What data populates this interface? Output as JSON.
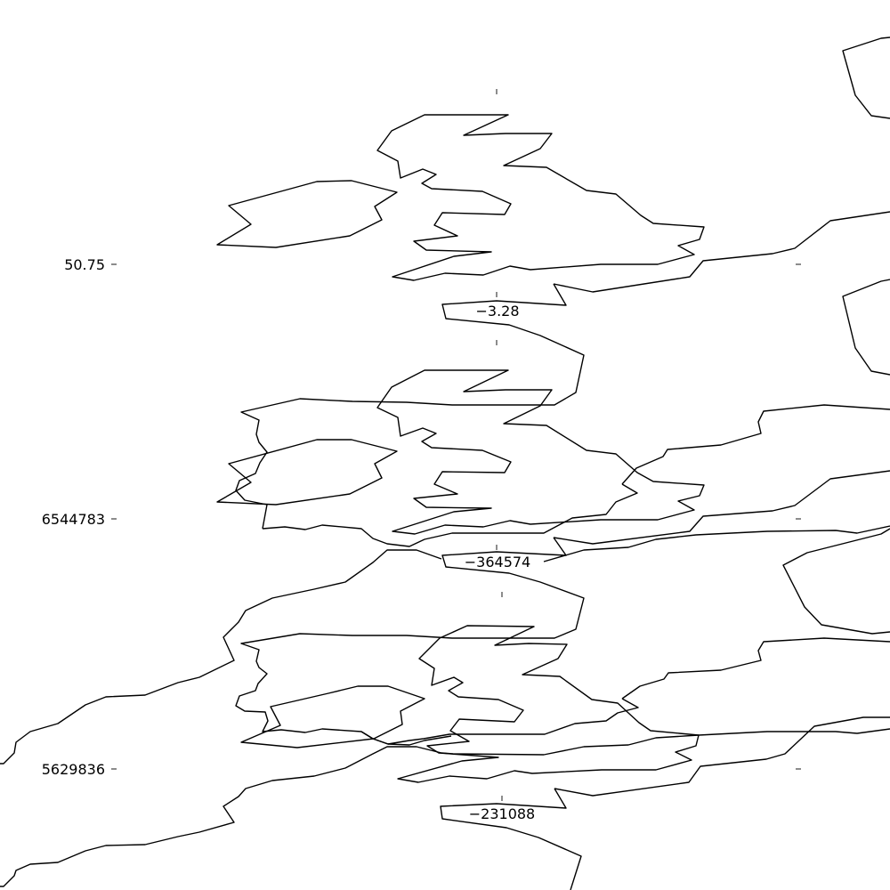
{
  "panels": [
    {
      "name": "top",
      "y_label": "50.75",
      "x_label": "−3.28"
    },
    {
      "name": "middle",
      "y_label": "6544783",
      "x_label": "−364574"
    },
    {
      "name": "bottom",
      "y_label": "5629836",
      "x_label": "−231088"
    }
  ],
  "colors": {
    "background": "#ffffff",
    "coastline": "#000000"
  }
}
